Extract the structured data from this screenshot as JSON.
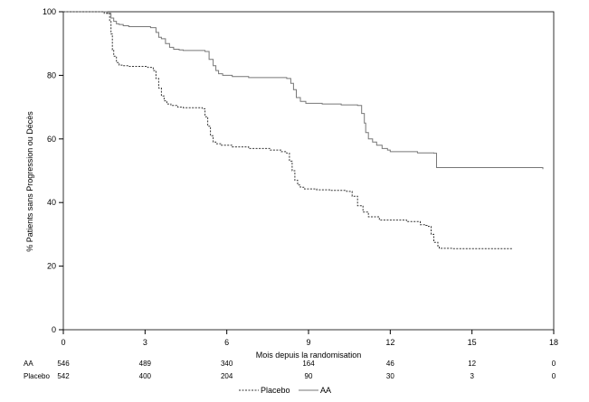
{
  "chart_data": {
    "type": "line",
    "xlabel": "Mois depuis la randomisation",
    "ylabel": "% Patients sans Progression ou Décès",
    "xlim": [
      0,
      18
    ],
    "ylim": [
      0,
      100
    ],
    "x_ticks": [
      0,
      3,
      6,
      9,
      12,
      15,
      18
    ],
    "y_ticks": [
      0,
      20,
      40,
      60,
      80,
      100
    ],
    "grid": false,
    "legend_position": "bottom-center",
    "series": [
      {
        "name": "AA",
        "style": "solid",
        "color": "#777777",
        "x": [
          0,
          1.6,
          1.75,
          1.85,
          1.95,
          2.05,
          2.2,
          2.4,
          3.2,
          3.4,
          3.5,
          3.6,
          3.75,
          3.9,
          4.05,
          4.25,
          4.4,
          5.2,
          5.35,
          5.5,
          5.6,
          5.7,
          5.85,
          6.2,
          6.8,
          8.2,
          8.35,
          8.45,
          8.55,
          8.7,
          8.9,
          9.5,
          10.2,
          10.8,
          10.95,
          11.05,
          11.1,
          11.2,
          11.35,
          11.5,
          11.7,
          11.9,
          12.0,
          13.0,
          13.6,
          13.7,
          14.5,
          16.5,
          17.6
        ],
        "y": [
          100,
          99.5,
          98,
          97,
          96.2,
          96,
          95.6,
          95.3,
          95,
          93.5,
          92,
          91.5,
          90,
          88.8,
          88.2,
          88,
          87.8,
          87.5,
          85,
          83,
          81.5,
          80.5,
          80,
          79.6,
          79.3,
          79,
          77.5,
          75.5,
          73,
          71.8,
          71.2,
          71,
          70.7,
          70.5,
          68,
          65,
          62,
          60,
          59,
          58,
          57,
          56.5,
          56,
          55.6,
          55.5,
          51,
          51,
          51,
          50.5
        ]
      },
      {
        "name": "Placebo",
        "style": "dashed",
        "color": "#333333",
        "x": [
          0,
          1.5,
          1.7,
          1.75,
          1.8,
          1.85,
          1.95,
          2.05,
          2.2,
          2.4,
          3.1,
          3.3,
          3.4,
          3.5,
          3.6,
          3.7,
          3.8,
          3.95,
          4.2,
          4.4,
          5.1,
          5.2,
          5.3,
          5.4,
          5.5,
          5.6,
          5.8,
          6.2,
          6.8,
          7.6,
          8.0,
          8.2,
          8.3,
          8.4,
          8.5,
          8.6,
          8.7,
          8.85,
          9.3,
          9.8,
          10.4,
          10.6,
          10.8,
          11.0,
          11.2,
          11.6,
          12.6,
          13.1,
          13.3,
          13.4,
          13.5,
          13.6,
          13.75,
          13.8,
          14.3,
          16.5
        ],
        "y": [
          100,
          99.5,
          97,
          93,
          88,
          86,
          84,
          83.2,
          83,
          82.8,
          82.5,
          81.5,
          79,
          76,
          73.5,
          72,
          71,
          70.5,
          70,
          69.8,
          69.5,
          67,
          64,
          61,
          59,
          58.5,
          58,
          57.5,
          57,
          56.5,
          56,
          55.5,
          53,
          50,
          47,
          45.5,
          44.8,
          44.3,
          44,
          43.8,
          43.5,
          42,
          39,
          37,
          35.5,
          34.5,
          34,
          33,
          32.8,
          32.5,
          30,
          27.5,
          26,
          25.6,
          25.5,
          25.5
        ]
      }
    ],
    "risk_table": {
      "times": [
        0,
        3,
        6,
        9,
        12,
        15,
        18
      ],
      "rows": [
        {
          "label": "AA",
          "values": [
            "546",
            "489",
            "340",
            "164",
            "46",
            "12",
            "0"
          ]
        },
        {
          "label": "Placebo",
          "values": [
            "542",
            "400",
            "204",
            "90",
            "30",
            "3",
            "0"
          ]
        }
      ]
    }
  }
}
